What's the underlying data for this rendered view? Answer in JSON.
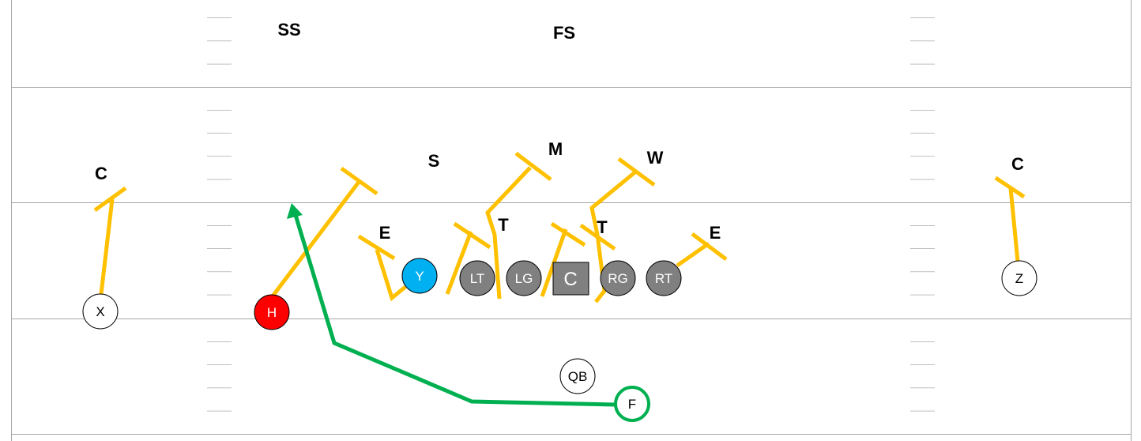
{
  "colors": {
    "block_route": "#FFC000",
    "route_green": "#00B050",
    "offensive_line_fill": "#808080",
    "y_fill": "#00B0F0",
    "h_fill": "#FF0000",
    "field_line": "#A6A6A6",
    "hash_mark": "#BFBFBF"
  },
  "defense": {
    "ss": "SS",
    "fs": "FS",
    "s": "S",
    "m": "M",
    "w": "W",
    "corner_left": "C",
    "corner_right": "C",
    "end_left": "E",
    "end_right": "E",
    "tackle_left": "T",
    "tackle_right": "T"
  },
  "offense": {
    "x": "X",
    "h": "H",
    "y": "Y",
    "lt": "LT",
    "lg": "LG",
    "c": "C",
    "rg": "RG",
    "rt": "RT",
    "z": "Z",
    "qb": "QB",
    "f": "F"
  },
  "icons": {
    "block_marker": "t-block-icon",
    "route_arrow": "arrow-head-icon"
  }
}
